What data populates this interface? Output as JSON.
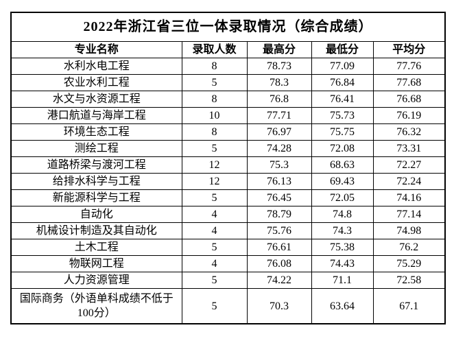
{
  "title": "2022年浙江省三位一体录取情况（综合成绩）",
  "table": {
    "headers": [
      "专业名称",
      "录取人数",
      "最高分",
      "最低分",
      "平均分"
    ],
    "rows": [
      [
        "水利水电工程",
        "8",
        "78.73",
        "77.09",
        "77.76"
      ],
      [
        "农业水利工程",
        "5",
        "78.3",
        "76.84",
        "77.68"
      ],
      [
        "水文与水资源工程",
        "8",
        "76.8",
        "76.41",
        "76.68"
      ],
      [
        "港口航道与海岸工程",
        "10",
        "77.71",
        "75.73",
        "76.19"
      ],
      [
        "环境生态工程",
        "8",
        "76.97",
        "75.75",
        "76.32"
      ],
      [
        "测绘工程",
        "5",
        "74.28",
        "72.08",
        "73.31"
      ],
      [
        "道路桥梁与渡河工程",
        "12",
        "75.3",
        "68.63",
        "72.27"
      ],
      [
        "给排水科学与工程",
        "12",
        "76.13",
        "69.43",
        "72.24"
      ],
      [
        "新能源科学与工程",
        "5",
        "76.45",
        "72.05",
        "74.16"
      ],
      [
        "自动化",
        "4",
        "78.79",
        "74.8",
        "77.14"
      ],
      [
        "机械设计制造及其自动化",
        "4",
        "75.76",
        "74.3",
        "74.98"
      ],
      [
        "土木工程",
        "5",
        "76.61",
        "75.38",
        "76.2"
      ],
      [
        "物联网工程",
        "4",
        "76.08",
        "74.43",
        "75.29"
      ],
      [
        "人力资源管理",
        "5",
        "74.22",
        "71.1",
        "72.58"
      ],
      [
        "国际商务（外语单科成绩不低于100分）",
        "5",
        "70.3",
        "63.64",
        "67.1"
      ]
    ]
  },
  "colors": {
    "border": "#000000",
    "text": "#000000",
    "background": "#ffffff"
  }
}
